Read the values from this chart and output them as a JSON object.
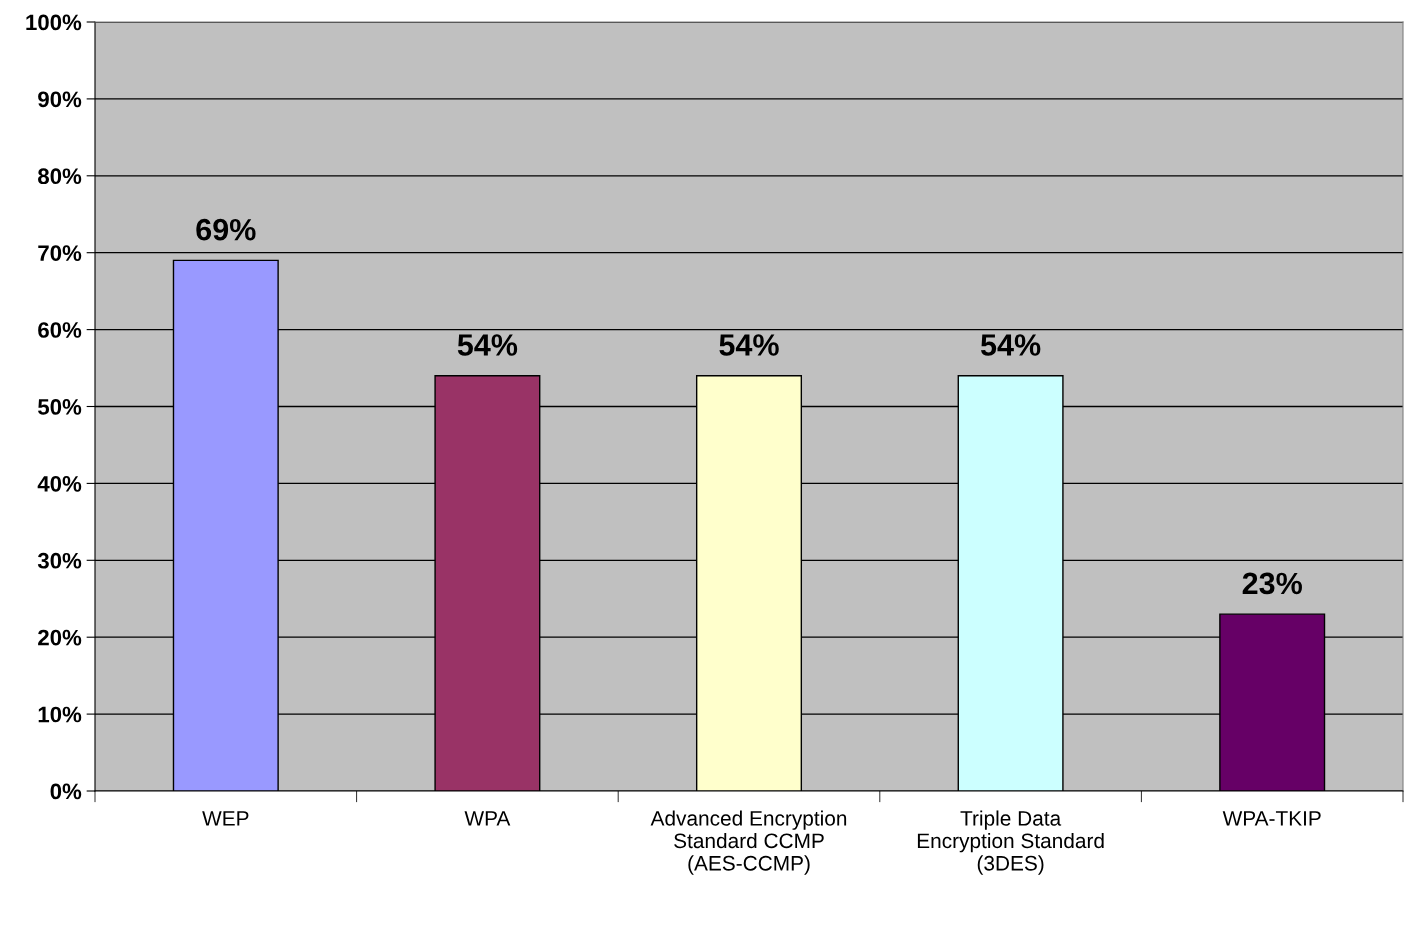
{
  "chart_data": {
    "type": "bar",
    "categories": [
      "WEP",
      "WPA",
      "Advanced Encryption\nStandard CCMP\n(AES-CCMP)",
      "Triple Data\nEncryption Standard\n(3DES)",
      "WPA-TKIP"
    ],
    "values": [
      69,
      54,
      54,
      54,
      23
    ],
    "colors": [
      "#9999ff",
      "#993366",
      "#ffffcc",
      "#ccffff",
      "#660066"
    ],
    "value_labels": [
      "69%",
      "54%",
      "54%",
      "54%",
      "23%"
    ],
    "ylim": [
      0,
      100
    ],
    "yticks": [
      {
        "value": 0,
        "label": "0%"
      },
      {
        "value": 10,
        "label": "10%"
      },
      {
        "value": 20,
        "label": "20%"
      },
      {
        "value": 30,
        "label": "30%"
      },
      {
        "value": 40,
        "label": "40%"
      },
      {
        "value": 50,
        "label": "50%"
      },
      {
        "value": 60,
        "label": "60%"
      },
      {
        "value": 70,
        "label": "70%"
      },
      {
        "value": 80,
        "label": "80%"
      },
      {
        "value": 90,
        "label": "90%"
      },
      {
        "value": 100,
        "label": "100%"
      }
    ],
    "grid": "y",
    "legend": false
  }
}
